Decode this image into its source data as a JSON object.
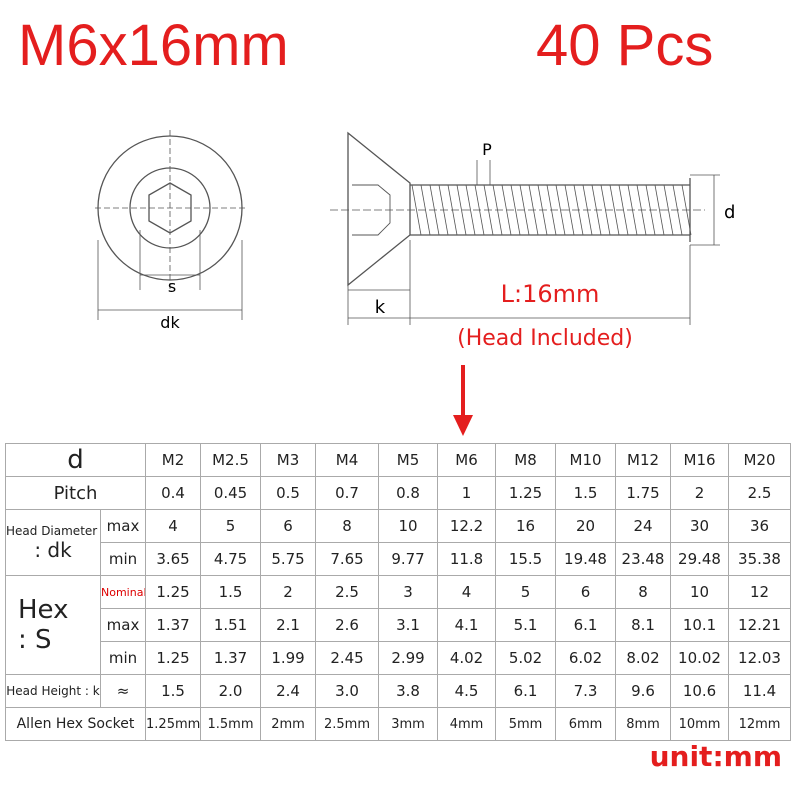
{
  "header": {
    "title": "M6x16mm",
    "quantity": "40 Pcs"
  },
  "diagram": {
    "s": "s",
    "dk": "dk",
    "p": "P",
    "d": "d",
    "k": "k",
    "length": "L:16mm",
    "length_note": "(Head Included)"
  },
  "table": {
    "sections": [
      {
        "label": [
          "d"
        ],
        "rows": [
          {
            "values": [
              "M2",
              "M2.5",
              "M3",
              "M4",
              "M5",
              "M6",
              "M8",
              "M10",
              "M12",
              "M16",
              "M20"
            ]
          }
        ]
      },
      {
        "label": [
          "Pitch"
        ],
        "rows": [
          {
            "values": [
              "0.4",
              "0.45",
              "0.5",
              "0.7",
              "0.8",
              "1",
              "1.25",
              "1.5",
              "1.75",
              "2",
              "2.5"
            ]
          }
        ]
      },
      {
        "label": [
          "Head Diameter",
          ":   dk"
        ],
        "rows": [
          {
            "sub": "max",
            "values": [
              "4",
              "5",
              "6",
              "8",
              "10",
              "12.2",
              "16",
              "20",
              "24",
              "30",
              "36"
            ]
          },
          {
            "sub": "min",
            "values": [
              "3.65",
              "4.75",
              "5.75",
              "7.65",
              "9.77",
              "11.8",
              "15.5",
              "19.48",
              "23.48",
              "29.48",
              "35.38"
            ]
          }
        ]
      },
      {
        "label": [
          "Hex",
          ": S"
        ],
        "rows": [
          {
            "sub": "Nominal",
            "values": [
              "1.25",
              "1.5",
              "2",
              "2.5",
              "3",
              "4",
              "5",
              "6",
              "8",
              "10",
              "12"
            ]
          },
          {
            "sub": "max",
            "values": [
              "1.37",
              "1.51",
              "2.1",
              "2.6",
              "3.1",
              "4.1",
              "5.1",
              "6.1",
              "8.1",
              "10.1",
              "12.21"
            ]
          },
          {
            "sub": "min",
            "values": [
              "1.25",
              "1.37",
              "1.99",
              "2.45",
              "2.99",
              "4.02",
              "5.02",
              "6.02",
              "8.02",
              "10.02",
              "12.03"
            ]
          }
        ]
      },
      {
        "label": [
          "Head Height : k"
        ],
        "rows": [
          {
            "sub": "≈",
            "values": [
              "1.5",
              "2.0",
              "2.4",
              "3.0",
              "3.8",
              "4.5",
              "6.1",
              "7.3",
              "9.6",
              "10.6",
              "11.4"
            ]
          }
        ]
      },
      {
        "label": [
          "Allen Hex Socket"
        ],
        "rows": [
          {
            "values": [
              "1.25mm",
              "1.5mm",
              "2mm",
              "2.5mm",
              "3mm",
              "4mm",
              "5mm",
              "6mm",
              "8mm",
              "10mm",
              "12mm"
            ]
          }
        ]
      }
    ]
  },
  "footer": {
    "unit": "unit:mm"
  }
}
